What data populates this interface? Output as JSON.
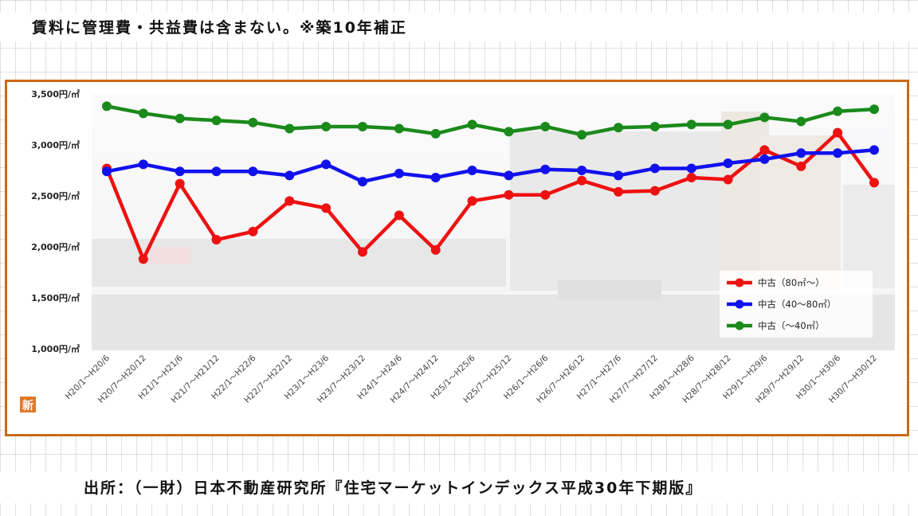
{
  "heading": "賃料に管理費・共益費は含まない。※築10年補正",
  "source": "出所：（一財）日本不動産研究所『住宅マーケットインデックス平成30年下期版』",
  "badge": "新",
  "chart_data": {
    "type": "line",
    "categories": [
      "H20/1～H20/6",
      "H20/7～H20/12",
      "H21/1～H21/6",
      "H21/7～H21/12",
      "H22/1～H22/6",
      "H22/7～H22/12",
      "H23/1～H23/6",
      "H23/7～H23/12",
      "H24/1～H24/6",
      "H24/7～H24/12",
      "H25/1～H25/6",
      "H25/7～H25/12",
      "H26/1～H26/6",
      "H26/7～H26/12",
      "H27/1～H27/6",
      "H27/7～H27/12",
      "H28/1～H28/6",
      "H28/7～H28/12",
      "H29/1～H29/6",
      "H29/7～H29/12",
      "H30/1～H30/6",
      "H30/7～H30/12"
    ],
    "ylim": [
      1000,
      3500
    ],
    "yticks": [
      {
        "value": 1000,
        "label": "1,000円/㎡"
      },
      {
        "value": 1500,
        "label": "1,500円/㎡"
      },
      {
        "value": 2000,
        "label": "2,000円/㎡"
      },
      {
        "value": 2500,
        "label": "2,500円/㎡"
      },
      {
        "value": 3000,
        "label": "3,000円/㎡"
      },
      {
        "value": 3500,
        "label": "3,500円/㎡"
      }
    ],
    "legend_position": "right",
    "series": [
      {
        "name": "中古（80㎡～）",
        "color": "#ee1111",
        "values": [
          2770,
          1880,
          2620,
          2070,
          2150,
          2450,
          2380,
          1950,
          2310,
          1970,
          2450,
          2510,
          2510,
          2650,
          2540,
          2550,
          2680,
          2660,
          2950,
          2790,
          3120,
          2630
        ]
      },
      {
        "name": "中古（40～80㎡）",
        "color": "#1111ee",
        "values": [
          2740,
          2810,
          2740,
          2740,
          2740,
          2700,
          2810,
          2640,
          2720,
          2680,
          2750,
          2700,
          2760,
          2750,
          2700,
          2770,
          2770,
          2820,
          2860,
          2920,
          2920,
          2950
        ]
      },
      {
        "name": "中古（～40㎡）",
        "color": "#1a8a1a",
        "values": [
          3380,
          3310,
          3260,
          3240,
          3220,
          3160,
          3180,
          3180,
          3160,
          3110,
          3200,
          3130,
          3180,
          3100,
          3170,
          3180,
          3200,
          3200,
          3270,
          3230,
          3330,
          3350
        ]
      }
    ]
  }
}
